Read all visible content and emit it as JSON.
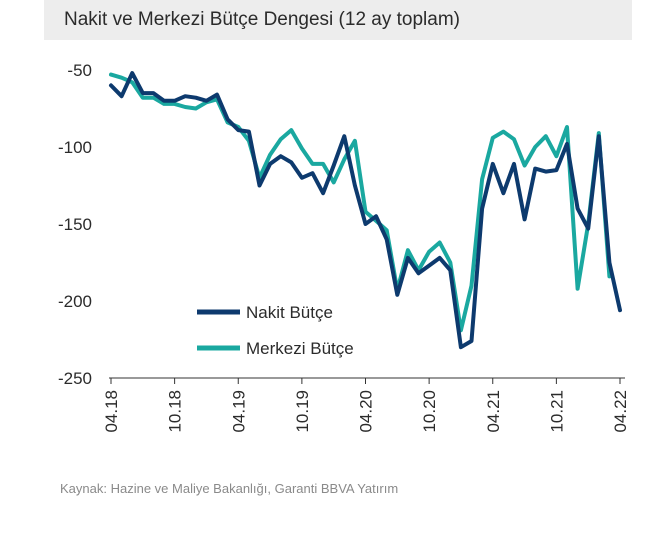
{
  "chart_data": {
    "type": "line",
    "title": "Nakit ve Merkezi Bütçe Dengesi (12 ay toplam)",
    "xlabel": "",
    "ylabel": "",
    "ylim": [
      -250,
      -50
    ],
    "yticks": [
      -50,
      -100,
      -150,
      -200,
      -250
    ],
    "xlim": [
      0,
      48
    ],
    "xticks": [
      {
        "label": "04.18",
        "index": 0
      },
      {
        "label": "10.18",
        "index": 6
      },
      {
        "label": "04.19",
        "index": 12
      },
      {
        "label": "10.19",
        "index": 18
      },
      {
        "label": "04.20",
        "index": 24
      },
      {
        "label": "10.20",
        "index": 30
      },
      {
        "label": "04.21",
        "index": 36
      },
      {
        "label": "10.21",
        "index": 42
      },
      {
        "label": "04.22",
        "index": 48
      }
    ],
    "series": [
      {
        "name": "Nakit Bütçe",
        "color": "#0d3a6e",
        "values": [
          -60,
          -67,
          -52,
          -65,
          -65,
          -70,
          -70,
          -67,
          -68,
          -70,
          -66,
          -82,
          -89,
          -90,
          -125,
          -111,
          -106,
          -110,
          -120,
          -117,
          -130,
          -112,
          -93,
          -125,
          -150,
          -145,
          -160,
          -196,
          -172,
          -182,
          -177,
          -172,
          -180,
          -230,
          -226,
          -140,
          -111,
          -130,
          -111,
          -147,
          -114,
          -116,
          -115,
          -98,
          -140,
          -153,
          -93,
          -175,
          -206
        ]
      },
      {
        "name": "Merkezi Bütçe",
        "color": "#1aa8a0",
        "values": [
          -53,
          -55,
          -58,
          -68,
          -68,
          -72,
          -72,
          -74,
          -75,
          -71,
          -69,
          -84,
          -87,
          -96,
          -120,
          -105,
          -95,
          -89,
          -101,
          -111,
          -111,
          -123,
          -108,
          -96,
          -142,
          -148,
          -154,
          -193,
          -167,
          -180,
          -168,
          -162,
          -175,
          -219,
          -190,
          -121,
          -94,
          -90,
          -95,
          -112,
          -100,
          -93,
          -106,
          -87,
          -192,
          -150,
          -91,
          -184
        ]
      }
    ],
    "legend_position": "center",
    "source": "Kaynak: Hazine ve Maliye Bakanlığı, Garanti BBVA Yatırım"
  }
}
